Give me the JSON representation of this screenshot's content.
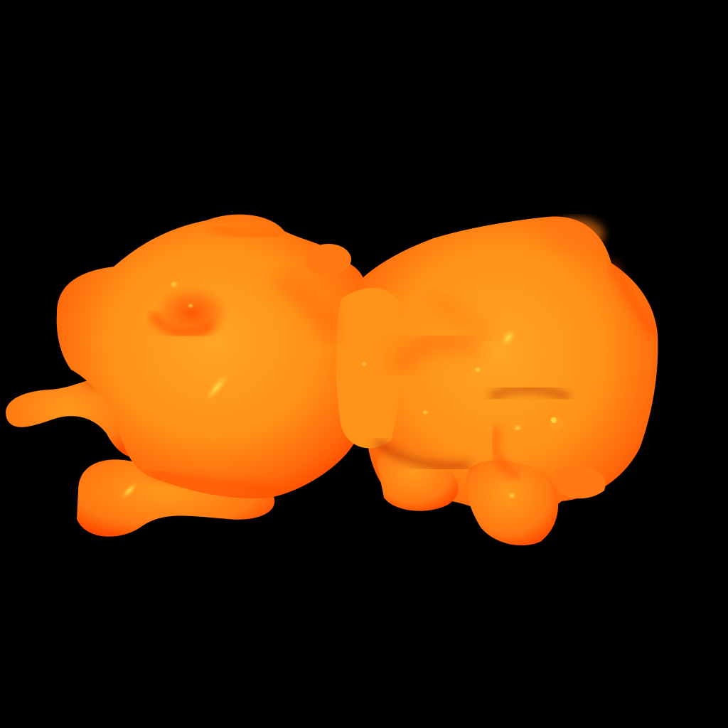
{
  "scene": {
    "background_color": "#000000",
    "subject": "orange-molecular-blob",
    "colors": {
      "highlight": "#FFD23A",
      "light": "#FFA524",
      "mid": "#FF7A12",
      "shadow": "#FF4A00",
      "deep_shadow": "#B02800"
    }
  }
}
